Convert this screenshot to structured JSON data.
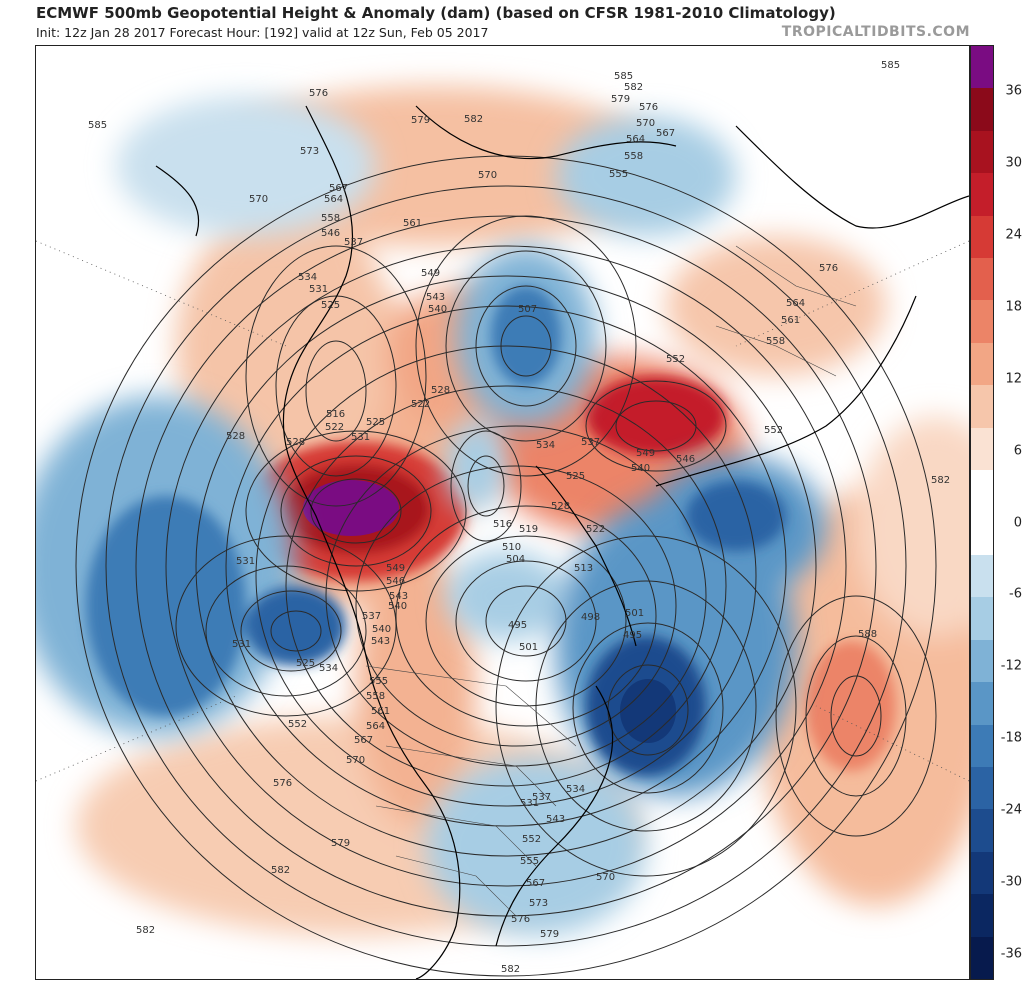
{
  "header": {
    "title": "ECMWF 500mb Geopotential Height & Anomaly (dam) (based on CFSR 1981-2010 Climatology)",
    "subtitle": "Init: 12z Jan 28 2017   Forecast Hour: [192]   valid at 12z Sun, Feb 05 2017",
    "credit": "TROPICALTIDBITS.COM"
  },
  "colorbar": {
    "segments": [
      "#7a0c82",
      "#8b0a1a",
      "#a8121f",
      "#c41e2a",
      "#d63a35",
      "#e3604d",
      "#ec8467",
      "#f2a685",
      "#f6c6ab",
      "#fae2d3",
      "#ffffff",
      "#ffffff",
      "#c9e0ee",
      "#a7cde4",
      "#7fb2d6",
      "#5a96c6",
      "#3d7bb6",
      "#2b63a4",
      "#1d4c8e",
      "#133878",
      "#0b2761",
      "#071a4d"
    ],
    "ticks": [
      "36",
      "30",
      "24",
      "18",
      "12",
      "6",
      "0",
      "-6",
      "-12",
      "-18",
      "-24",
      "-30",
      "-36"
    ]
  },
  "contour_labels": [
    "585",
    "582",
    "579",
    "576",
    "570",
    "567",
    "564",
    "558",
    "555",
    "573",
    "561",
    "552",
    "546",
    "537",
    "534",
    "531",
    "525",
    "549",
    "543",
    "540",
    "528",
    "522",
    "516",
    "507",
    "510",
    "504",
    "513",
    "519",
    "498",
    "495",
    "501",
    "588"
  ],
  "anomaly_features": [
    {
      "name": "positive-anomaly-center",
      "color": "#7a0c82"
    },
    {
      "name": "negative-anomaly-center",
      "color": "#133878"
    }
  ]
}
